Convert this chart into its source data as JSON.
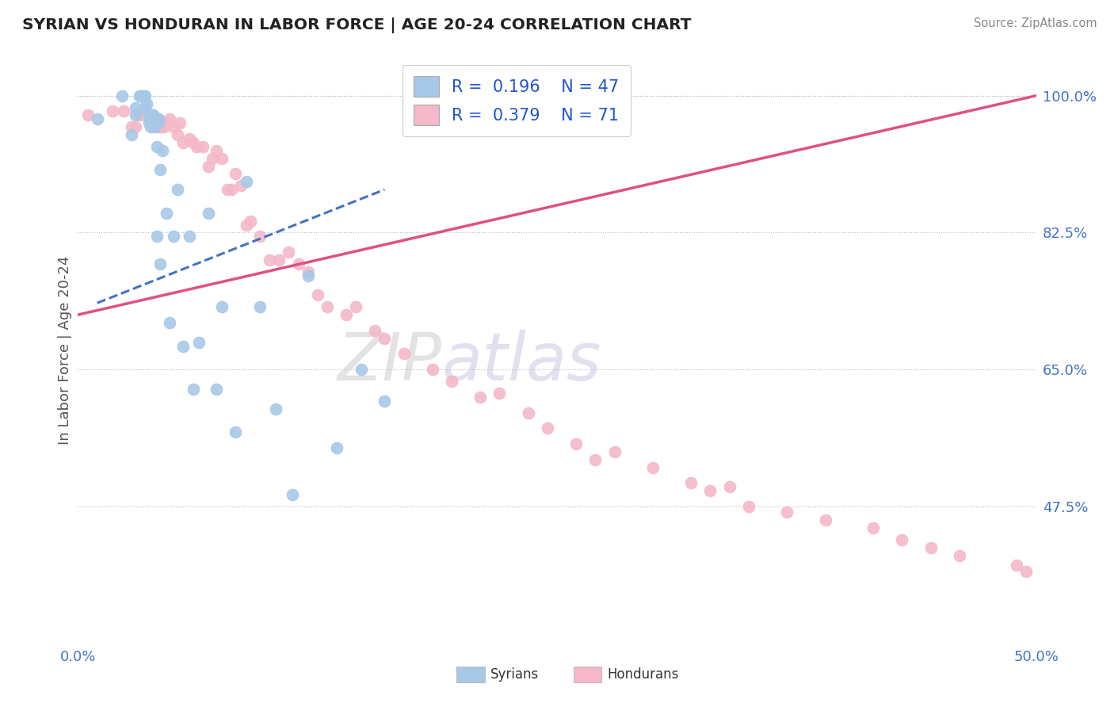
{
  "title": "SYRIAN VS HONDURAN IN LABOR FORCE | AGE 20-24 CORRELATION CHART",
  "source": "Source: ZipAtlas.com",
  "ylabel": "In Labor Force | Age 20-24",
  "xlim": [
    0.0,
    0.5
  ],
  "ylim": [
    0.3,
    1.05
  ],
  "yticks": [
    0.475,
    0.65,
    0.825,
    1.0
  ],
  "ytick_labels": [
    "47.5%",
    "65.0%",
    "82.5%",
    "100.0%"
  ],
  "watermark_zip": "ZIP",
  "watermark_atlas": "atlas",
  "legend_syrian_R": "0.196",
  "legend_syrian_N": "47",
  "legend_honduran_R": "0.379",
  "legend_honduran_N": "71",
  "syrian_color": "#A8C8E8",
  "honduran_color": "#F5B8C8",
  "syrian_line_color": "#4472C4",
  "honduran_line_color": "#E05080",
  "background_color": "#FFFFFF",
  "syrian_line_x0": 0.01,
  "syrian_line_x1": 0.16,
  "syrian_line_y0": 0.735,
  "syrian_line_y1": 0.88,
  "honduran_line_x0": 0.0,
  "honduran_line_x1": 0.5,
  "honduran_line_y0": 0.72,
  "honduran_line_y1": 1.0,
  "syrians_x": [
    0.01,
    0.023,
    0.028,
    0.03,
    0.03,
    0.032,
    0.033,
    0.034,
    0.035,
    0.035,
    0.036,
    0.037,
    0.037,
    0.038,
    0.038,
    0.039,
    0.039,
    0.04,
    0.04,
    0.04,
    0.041,
    0.041,
    0.042,
    0.042,
    0.043,
    0.043,
    0.044,
    0.046,
    0.048,
    0.05,
    0.052,
    0.055,
    0.058,
    0.06,
    0.063,
    0.068,
    0.072,
    0.075,
    0.082,
    0.088,
    0.095,
    0.103,
    0.112,
    0.12,
    0.135,
    0.148,
    0.16
  ],
  "syrians_y": [
    0.97,
    1.0,
    0.95,
    0.975,
    0.985,
    1.0,
    1.0,
    1.0,
    1.0,
    0.985,
    0.99,
    0.965,
    0.975,
    0.97,
    0.96,
    0.975,
    0.975,
    0.97,
    0.965,
    0.96,
    0.935,
    0.82,
    0.97,
    0.965,
    0.905,
    0.785,
    0.93,
    0.85,
    0.71,
    0.82,
    0.88,
    0.68,
    0.82,
    0.625,
    0.685,
    0.85,
    0.625,
    0.73,
    0.57,
    0.89,
    0.73,
    0.6,
    0.49,
    0.77,
    0.55,
    0.65,
    0.61
  ],
  "hondurans_x": [
    0.005,
    0.018,
    0.024,
    0.028,
    0.03,
    0.032,
    0.033,
    0.035,
    0.038,
    0.04,
    0.041,
    0.042,
    0.043,
    0.044,
    0.045,
    0.046,
    0.047,
    0.048,
    0.05,
    0.052,
    0.053,
    0.055,
    0.058,
    0.06,
    0.062,
    0.065,
    0.068,
    0.07,
    0.072,
    0.075,
    0.078,
    0.08,
    0.082,
    0.085,
    0.088,
    0.09,
    0.095,
    0.1,
    0.105,
    0.11,
    0.115,
    0.12,
    0.125,
    0.13,
    0.14,
    0.145,
    0.155,
    0.16,
    0.17,
    0.185,
    0.195,
    0.21,
    0.22,
    0.235,
    0.245,
    0.26,
    0.27,
    0.28,
    0.3,
    0.32,
    0.33,
    0.34,
    0.35,
    0.37,
    0.39,
    0.415,
    0.43,
    0.445,
    0.46,
    0.49,
    0.495
  ],
  "hondurans_y": [
    0.975,
    0.98,
    0.98,
    0.96,
    0.96,
    0.975,
    0.98,
    0.975,
    0.975,
    0.97,
    0.96,
    0.97,
    0.96,
    0.965,
    0.96,
    0.965,
    0.965,
    0.97,
    0.96,
    0.95,
    0.965,
    0.94,
    0.945,
    0.94,
    0.935,
    0.935,
    0.91,
    0.92,
    0.93,
    0.92,
    0.88,
    0.88,
    0.9,
    0.885,
    0.835,
    0.84,
    0.82,
    0.79,
    0.79,
    0.8,
    0.785,
    0.775,
    0.745,
    0.73,
    0.72,
    0.73,
    0.7,
    0.69,
    0.67,
    0.65,
    0.635,
    0.615,
    0.62,
    0.595,
    0.575,
    0.555,
    0.535,
    0.545,
    0.525,
    0.505,
    0.495,
    0.5,
    0.475,
    0.468,
    0.458,
    0.448,
    0.432,
    0.422,
    0.412,
    0.4,
    0.392
  ]
}
